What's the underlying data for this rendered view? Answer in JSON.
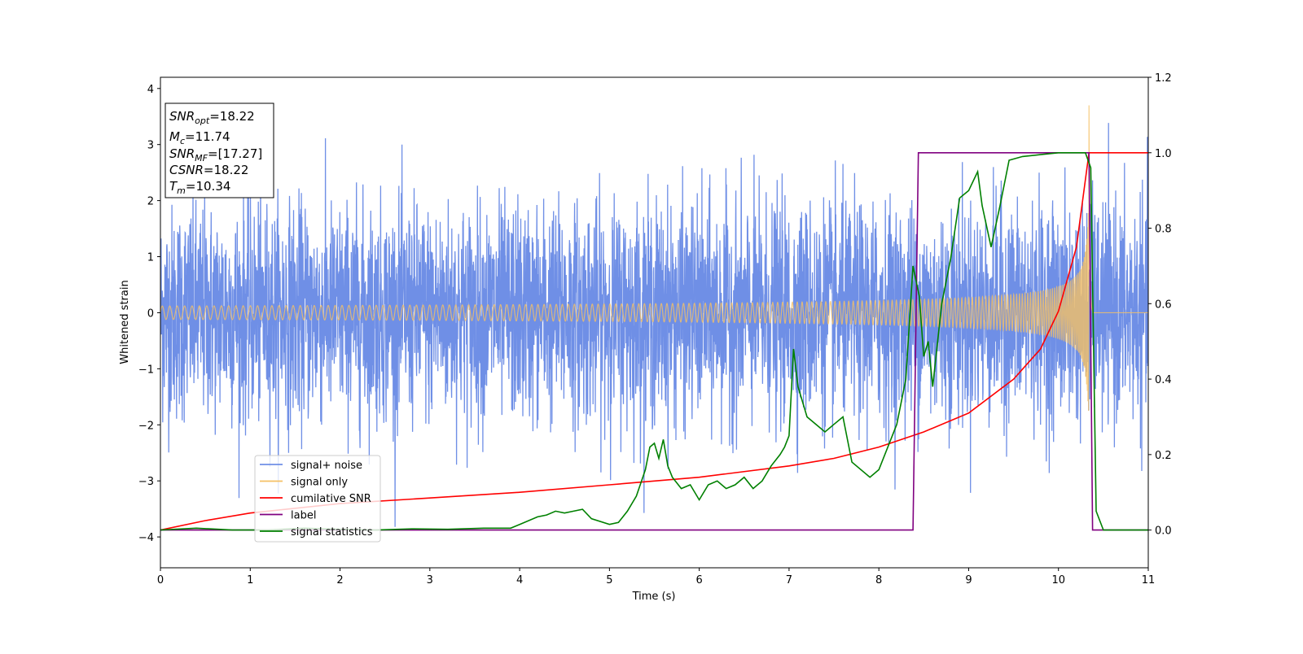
{
  "chart_data": {
    "type": "line",
    "xlabel": "Time (s)",
    "ylabel": "Whitened strain",
    "xlim": [
      0,
      11
    ],
    "ylim_left": [
      -4.55,
      4.2
    ],
    "ylim_right": [
      -0.1,
      1.2
    ],
    "x_ticks": [
      "0",
      "1",
      "2",
      "3",
      "4",
      "5",
      "6",
      "7",
      "8",
      "9",
      "10",
      "11"
    ],
    "y_ticks_left": [
      "−4",
      "−3",
      "−2",
      "−1",
      "0",
      "1",
      "2",
      "3",
      "4"
    ],
    "y_ticks_right": [
      "0.0",
      "0.2",
      "0.4",
      "0.6",
      "0.8",
      "1.0",
      "1.2"
    ],
    "grid": false,
    "legend_position": "lower-left",
    "info_box": {
      "lines": [
        {
          "sym": "SNR",
          "sub": "opt",
          "value": "=18.22"
        },
        {
          "sym": "M",
          "sub": "c",
          "value": "=11.74"
        },
        {
          "sym": "SNR",
          "sub": "MF",
          "value": "=[17.27]"
        },
        {
          "sym": "CSNR",
          "sub": "",
          "value": "=18.22"
        },
        {
          "sym": "T",
          "sub": "m",
          "value": "=10.34"
        }
      ]
    },
    "series": [
      {
        "name": "signal+ noise",
        "color": "#6f8fe6",
        "axis": "left",
        "kind": "noisy-strain",
        "approx_range": [
          -4.1,
          3.8
        ],
        "noise_std": 0.95
      },
      {
        "name": "signal only",
        "color": "#f5c065",
        "axis": "left",
        "kind": "chirp",
        "merger_time": 10.34,
        "peak_amplitude": 3.7,
        "end_time": 10.38
      },
      {
        "name": "cumilative SNR",
        "color": "#ff0000",
        "axis": "right",
        "x": [
          0,
          0.5,
          1,
          2,
          3,
          4,
          5,
          6,
          7,
          7.5,
          8,
          8.5,
          9,
          9.5,
          9.8,
          10,
          10.2,
          10.34,
          10.4,
          11
        ],
        "y": [
          0.0,
          0.025,
          0.045,
          0.07,
          0.085,
          0.1,
          0.12,
          0.14,
          0.17,
          0.19,
          0.22,
          0.26,
          0.31,
          0.4,
          0.48,
          0.58,
          0.75,
          1.0,
          1.0,
          1.0
        ]
      },
      {
        "name": "label",
        "color": "#800080",
        "axis": "right",
        "x": [
          0,
          8.38,
          8.44,
          10.34,
          10.38,
          11
        ],
        "y": [
          0,
          0,
          1,
          1,
          0,
          0
        ]
      },
      {
        "name": "signal statistics",
        "color": "#008000",
        "axis": "right",
        "x": [
          0,
          0.4,
          0.8,
          1.2,
          1.6,
          2.0,
          2.4,
          2.8,
          3.2,
          3.6,
          3.9,
          4.0,
          4.2,
          4.3,
          4.4,
          4.5,
          4.6,
          4.7,
          4.8,
          5.0,
          5.1,
          5.2,
          5.3,
          5.4,
          5.45,
          5.5,
          5.55,
          5.6,
          5.65,
          5.7,
          5.8,
          5.9,
          6.0,
          6.1,
          6.2,
          6.3,
          6.4,
          6.5,
          6.6,
          6.7,
          6.8,
          6.9,
          6.95,
          7.0,
          7.05,
          7.1,
          7.2,
          7.3,
          7.4,
          7.5,
          7.6,
          7.7,
          7.9,
          8.0,
          8.1,
          8.2,
          8.3,
          8.38,
          8.45,
          8.5,
          8.55,
          8.6,
          8.7,
          8.8,
          8.9,
          9.0,
          9.1,
          9.15,
          9.25,
          9.35,
          9.45,
          9.6,
          9.8,
          10.0,
          10.2,
          10.3,
          10.36,
          10.42,
          10.5,
          11.0
        ],
        "y": [
          0.0,
          0.005,
          0.0,
          0.0,
          0.005,
          0.002,
          0.0,
          0.003,
          0.002,
          0.005,
          0.005,
          0.015,
          0.035,
          0.04,
          0.05,
          0.045,
          0.05,
          0.055,
          0.03,
          0.015,
          0.02,
          0.05,
          0.09,
          0.16,
          0.22,
          0.23,
          0.19,
          0.24,
          0.17,
          0.14,
          0.11,
          0.12,
          0.08,
          0.12,
          0.13,
          0.11,
          0.12,
          0.14,
          0.11,
          0.13,
          0.17,
          0.2,
          0.22,
          0.25,
          0.48,
          0.38,
          0.3,
          0.28,
          0.26,
          0.28,
          0.3,
          0.18,
          0.14,
          0.16,
          0.22,
          0.28,
          0.4,
          0.7,
          0.62,
          0.46,
          0.5,
          0.38,
          0.6,
          0.72,
          0.88,
          0.9,
          0.95,
          0.86,
          0.75,
          0.86,
          0.98,
          0.99,
          0.995,
          1.0,
          1.0,
          1.0,
          0.96,
          0.05,
          0.0,
          0.0
        ]
      }
    ]
  }
}
